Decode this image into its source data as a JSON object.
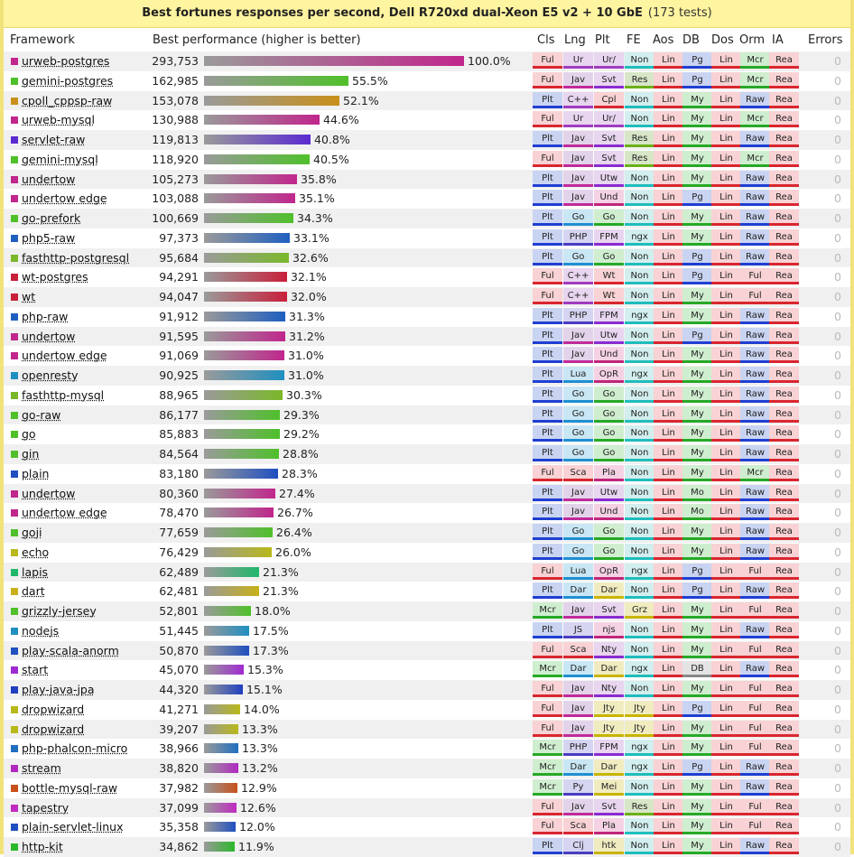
{
  "title": "Best fortunes responses per second, Dell R720xd dual-Xeon E5 v2 + 10 GbE",
  "tests_note": "(173 tests)",
  "headers": {
    "framework": "Framework",
    "performance": "Best performance (higher is better)",
    "attrs": [
      "Cls",
      "Lng",
      "Plt",
      "FE",
      "Aos",
      "DB",
      "Dos",
      "Orm",
      "IA"
    ],
    "errors": "Errors"
  },
  "attr_colors": {
    "Cls": {
      "Ful": [
        "#f8d2d4",
        "#d9262f"
      ],
      "Plt": [
        "#c9d4f2",
        "#1f3fd1"
      ],
      "Mcr": [
        "#cfeecf",
        "#26a926"
      ]
    },
    "Lng": {
      "Ur": [
        "#e8d5ef",
        "#a03cc0"
      ],
      "C++": [
        "#e8d5ef",
        "#a03cc0"
      ],
      "Jav": [
        "#e3d3ea",
        "#c02a9a"
      ],
      "Go": [
        "#c9e6f4",
        "#1f8fd1"
      ],
      "PHP": [
        "#d5d5f2",
        "#4a3cc0"
      ],
      "Lua": [
        "#c9e6f4",
        "#1f8fd1"
      ],
      "Sca": [
        "#f8d2d4",
        "#d9262f"
      ],
      "Dar": [
        "#c9e6f4",
        "#1f8fd1"
      ],
      "JS": [
        "#d5d5f2",
        "#4a3cc0"
      ],
      "Py": [
        "#d5d5f2",
        "#4a3cc0"
      ],
      "Clj": [
        "#d5d5f2",
        "#4a3cc0"
      ]
    },
    "Plt": {
      "Ur/": [
        "#e8d5ef",
        "#a03cc0"
      ],
      "Svt": [
        "#e8d5ef",
        "#8a2bd1"
      ],
      "Cpl": [
        "#f8d2d4",
        "#d9262f"
      ],
      "Utw": [
        "#e8d5ef",
        "#8a2bd1"
      ],
      "Und": [
        "#f4d2e4",
        "#c0267a"
      ],
      "Go": [
        "#cfeecf",
        "#26a926"
      ],
      "FPM": [
        "#e8d5ef",
        "#8a2bd1"
      ],
      "Wt": [
        "#f8d2d4",
        "#d9262f"
      ],
      "OpR": [
        "#f4d2e4",
        "#c0267a"
      ],
      "Pla": [
        "#f4d2e4",
        "#c0267a"
      ],
      "Dar": [
        "#f0ecc0",
        "#c8b400"
      ],
      "njs": [
        "#f4d2e4",
        "#c0267a"
      ],
      "Nty": [
        "#e8d5ef",
        "#8a2bd1"
      ],
      "Jty": [
        "#f0ecc0",
        "#c8b400"
      ],
      "Mei": [
        "#f0ecc0",
        "#c8b400"
      ],
      "htk": [
        "#f0ecc0",
        "#c8b400"
      ]
    },
    "FE": {
      "Non": [
        "#d2eeee",
        "#1fbcbc"
      ],
      "Res": [
        "#d8e6c8",
        "#6ab018"
      ],
      "ngx": [
        "#d2eeee",
        "#1fbcbc"
      ],
      "Grz": [
        "#f0ecc0",
        "#c8b400"
      ],
      "Jty": [
        "#f0ecc0",
        "#c8b400"
      ]
    },
    "Aos": {
      "Lin": [
        "#f8d2d4",
        "#d9262f"
      ]
    },
    "DB": {
      "Pg": [
        "#c9d4f2",
        "#1f3fd1"
      ],
      "My": [
        "#cfeecf",
        "#26a926"
      ],
      "Mo": [
        "#cfeecf",
        "#26a926"
      ]
    },
    "Dos": {
      "Lin": [
        "#f8d2d4",
        "#d9262f"
      ]
    },
    "Orm": {
      "Mcr": [
        "#cfeecf",
        "#26a926"
      ],
      "Raw": [
        "#c9d4f2",
        "#1f3fd1"
      ],
      "Ful": [
        "#f8d2d4",
        "#d9262f"
      ]
    },
    "IA": {
      "Rea": [
        "#f8d2d4",
        "#d9262f"
      ]
    }
  },
  "rows": [
    {
      "name": "urweb-postgres",
      "value": "293,753",
      "pct": "100.0%",
      "color": "#c0268c",
      "attrs": [
        "Ful",
        "Ur",
        "Ur/",
        "Non",
        "Lin",
        "Pg",
        "Lin",
        "Mcr",
        "Rea"
      ],
      "errors": "0"
    },
    {
      "name": "gemini-postgres",
      "value": "162,985",
      "pct": "55.5%",
      "color": "#4fc02a",
      "attrs": [
        "Ful",
        "Jav",
        "Svt",
        "Res",
        "Lin",
        "Pg",
        "Lin",
        "Mcr",
        "Rea"
      ],
      "errors": "0"
    },
    {
      "name": "cpoll_cppsp-raw",
      "value": "153,078",
      "pct": "52.1%",
      "color": "#c8901a",
      "attrs": [
        "Plt",
        "C++",
        "Cpl",
        "Non",
        "Lin",
        "My",
        "Lin",
        "Raw",
        "Rea"
      ],
      "errors": "0"
    },
    {
      "name": "urweb-mysql",
      "value": "130,988",
      "pct": "44.6%",
      "color": "#c0268c",
      "attrs": [
        "Ful",
        "Ur",
        "Ur/",
        "Non",
        "Lin",
        "My",
        "Lin",
        "Mcr",
        "Rea"
      ],
      "errors": "0"
    },
    {
      "name": "servlet-raw",
      "value": "119,813",
      "pct": "40.8%",
      "color": "#5a2ad1",
      "attrs": [
        "Plt",
        "Jav",
        "Svt",
        "Res",
        "Lin",
        "My",
        "Lin",
        "Raw",
        "Rea"
      ],
      "errors": "0"
    },
    {
      "name": "gemini-mysql",
      "value": "118,920",
      "pct": "40.5%",
      "color": "#4fc02a",
      "attrs": [
        "Ful",
        "Jav",
        "Svt",
        "Res",
        "Lin",
        "My",
        "Lin",
        "Mcr",
        "Rea"
      ],
      "errors": "0"
    },
    {
      "name": "undertow",
      "value": "105,273",
      "pct": "35.8%",
      "color": "#c0268c",
      "attrs": [
        "Plt",
        "Jav",
        "Utw",
        "Non",
        "Lin",
        "My",
        "Lin",
        "Raw",
        "Rea"
      ],
      "errors": "0"
    },
    {
      "name": "undertow edge",
      "value": "103,088",
      "pct": "35.1%",
      "color": "#c0268c",
      "attrs": [
        "Plt",
        "Jav",
        "Und",
        "Non",
        "Lin",
        "Pg",
        "Lin",
        "Raw",
        "Rea"
      ],
      "errors": "0"
    },
    {
      "name": "go-prefork",
      "value": "100,669",
      "pct": "34.3%",
      "color": "#4fc02a",
      "attrs": [
        "Plt",
        "Go",
        "Go",
        "Non",
        "Lin",
        "My",
        "Lin",
        "Raw",
        "Rea"
      ],
      "errors": "0"
    },
    {
      "name": "php5-raw",
      "value": "97,373",
      "pct": "33.1%",
      "color": "#1f5fc0",
      "attrs": [
        "Plt",
        "PHP",
        "FPM",
        "ngx",
        "Lin",
        "My",
        "Lin",
        "Raw",
        "Rea"
      ],
      "errors": "0"
    },
    {
      "name": "fasthttp-postgresql",
      "value": "95,684",
      "pct": "32.6%",
      "color": "#7ab82a",
      "attrs": [
        "Plt",
        "Go",
        "Go",
        "Non",
        "Lin",
        "Pg",
        "Lin",
        "Raw",
        "Rea"
      ],
      "errors": "0"
    },
    {
      "name": "wt-postgres",
      "value": "94,291",
      "pct": "32.1%",
      "color": "#c8203a",
      "attrs": [
        "Ful",
        "C++",
        "Wt",
        "Non",
        "Lin",
        "Pg",
        "Lin",
        "Ful",
        "Rea"
      ],
      "errors": "0"
    },
    {
      "name": "wt",
      "value": "94,047",
      "pct": "32.0%",
      "color": "#c8203a",
      "attrs": [
        "Ful",
        "C++",
        "Wt",
        "Non",
        "Lin",
        "My",
        "Lin",
        "Ful",
        "Rea"
      ],
      "errors": "0"
    },
    {
      "name": "php-raw",
      "value": "91,912",
      "pct": "31.3%",
      "color": "#1f5fc0",
      "attrs": [
        "Plt",
        "PHP",
        "FPM",
        "ngx",
        "Lin",
        "My",
        "Lin",
        "Raw",
        "Rea"
      ],
      "errors": "0"
    },
    {
      "name": "undertow",
      "value": "91,595",
      "pct": "31.2%",
      "color": "#c0268c",
      "attrs": [
        "Plt",
        "Jav",
        "Utw",
        "Non",
        "Lin",
        "Pg",
        "Lin",
        "Raw",
        "Rea"
      ],
      "errors": "0"
    },
    {
      "name": "undertow edge",
      "value": "91,069",
      "pct": "31.0%",
      "color": "#c0268c",
      "attrs": [
        "Plt",
        "Jav",
        "Und",
        "Non",
        "Lin",
        "My",
        "Lin",
        "Raw",
        "Rea"
      ],
      "errors": "0"
    },
    {
      "name": "openresty",
      "value": "90,925",
      "pct": "31.0%",
      "color": "#1f8fc0",
      "attrs": [
        "Plt",
        "Lua",
        "OpR",
        "ngx",
        "Lin",
        "My",
        "Lin",
        "Raw",
        "Rea"
      ],
      "errors": "0"
    },
    {
      "name": "fasthttp-mysql",
      "value": "88,965",
      "pct": "30.3%",
      "color": "#7ab82a",
      "attrs": [
        "Plt",
        "Go",
        "Go",
        "Non",
        "Lin",
        "My",
        "Lin",
        "Raw",
        "Rea"
      ],
      "errors": "0"
    },
    {
      "name": "go-raw",
      "value": "86,177",
      "pct": "29.3%",
      "color": "#4fc02a",
      "attrs": [
        "Plt",
        "Go",
        "Go",
        "Non",
        "Lin",
        "My",
        "Lin",
        "Raw",
        "Rea"
      ],
      "errors": "0"
    },
    {
      "name": "go",
      "value": "85,883",
      "pct": "29.2%",
      "color": "#4fc02a",
      "attrs": [
        "Plt",
        "Go",
        "Go",
        "Non",
        "Lin",
        "My",
        "Lin",
        "Raw",
        "Rea"
      ],
      "errors": "0"
    },
    {
      "name": "gin",
      "value": "84,564",
      "pct": "28.8%",
      "color": "#4fc02a",
      "attrs": [
        "Plt",
        "Go",
        "Go",
        "Non",
        "Lin",
        "My",
        "Lin",
        "Raw",
        "Rea"
      ],
      "errors": "0"
    },
    {
      "name": "plain",
      "value": "83,180",
      "pct": "28.3%",
      "color": "#1f4fc0",
      "attrs": [
        "Ful",
        "Sca",
        "Pla",
        "Non",
        "Lin",
        "My",
        "Lin",
        "Mcr",
        "Rea"
      ],
      "errors": "0"
    },
    {
      "name": "undertow",
      "value": "80,360",
      "pct": "27.4%",
      "color": "#c0268c",
      "attrs": [
        "Plt",
        "Jav",
        "Utw",
        "Non",
        "Lin",
        "Mo",
        "Lin",
        "Raw",
        "Rea"
      ],
      "errors": "0"
    },
    {
      "name": "undertow edge",
      "value": "78,470",
      "pct": "26.7%",
      "color": "#c0268c",
      "attrs": [
        "Plt",
        "Jav",
        "Und",
        "Non",
        "Lin",
        "Mo",
        "Lin",
        "Raw",
        "Rea"
      ],
      "errors": "0"
    },
    {
      "name": "goji",
      "value": "77,659",
      "pct": "26.4%",
      "color": "#4fc02a",
      "attrs": [
        "Plt",
        "Go",
        "Go",
        "Non",
        "Lin",
        "My",
        "Lin",
        "Raw",
        "Rea"
      ],
      "errors": "0"
    },
    {
      "name": "echo",
      "value": "76,429",
      "pct": "26.0%",
      "color": "#b8b81a",
      "attrs": [
        "Plt",
        "Go",
        "Go",
        "Non",
        "Lin",
        "My",
        "Lin",
        "Raw",
        "Rea"
      ],
      "errors": "0"
    },
    {
      "name": "lapis",
      "value": "62,489",
      "pct": "21.3%",
      "color": "#1fb86a",
      "attrs": [
        "Ful",
        "Lua",
        "OpR",
        "ngx",
        "Lin",
        "Pg",
        "Lin",
        "Ful",
        "Rea"
      ],
      "errors": "0"
    },
    {
      "name": "dart",
      "value": "62,481",
      "pct": "21.3%",
      "color": "#c8b01a",
      "attrs": [
        "Plt",
        "Dar",
        "Dar",
        "Non",
        "Lin",
        "Pg",
        "Lin",
        "Raw",
        "Rea"
      ],
      "errors": "0"
    },
    {
      "name": "grizzly-jersey",
      "value": "52,801",
      "pct": "18.0%",
      "color": "#4fc02a",
      "attrs": [
        "Mcr",
        "Jav",
        "Svt",
        "Grz",
        "Lin",
        "My",
        "Lin",
        "Ful",
        "Rea"
      ],
      "errors": "0"
    },
    {
      "name": "nodejs",
      "value": "51,445",
      "pct": "17.5%",
      "color": "#1f8fc0",
      "attrs": [
        "Plt",
        "JS",
        "njs",
        "Non",
        "Lin",
        "My",
        "Lin",
        "Raw",
        "Rea"
      ],
      "errors": "0"
    },
    {
      "name": "play-scala-anorm",
      "value": "50,870",
      "pct": "17.3%",
      "color": "#1f4fc0",
      "attrs": [
        "Ful",
        "Sca",
        "Nty",
        "Non",
        "Lin",
        "My",
        "Lin",
        "Ful",
        "Rea"
      ],
      "errors": "0"
    },
    {
      "name": "start",
      "value": "45,070",
      "pct": "15.3%",
      "color": "#a02ad1",
      "attrs": [
        "Mcr",
        "Dar",
        "Dar",
        "ngx",
        "Lin",
        "DB",
        "Lin",
        "Raw",
        "Rea"
      ],
      "errors": "0"
    },
    {
      "name": "play-java-jpa",
      "value": "44,320",
      "pct": "15.1%",
      "color": "#1f3fc0",
      "attrs": [
        "Ful",
        "Jav",
        "Nty",
        "Non",
        "Lin",
        "My",
        "Lin",
        "Ful",
        "Rea"
      ],
      "errors": "0"
    },
    {
      "name": "dropwizard",
      "value": "41,271",
      "pct": "14.0%",
      "color": "#b8b81a",
      "attrs": [
        "Ful",
        "Jav",
        "Jty",
        "Jty",
        "Lin",
        "Pg",
        "Lin",
        "Ful",
        "Rea"
      ],
      "errors": "0"
    },
    {
      "name": "dropwizard",
      "value": "39,207",
      "pct": "13.3%",
      "color": "#b8b81a",
      "attrs": [
        "Ful",
        "Jav",
        "Jty",
        "Jty",
        "Lin",
        "My",
        "Lin",
        "Ful",
        "Rea"
      ],
      "errors": "0"
    },
    {
      "name": "php-phalcon-micro",
      "value": "38,966",
      "pct": "13.3%",
      "color": "#1f6fc0",
      "attrs": [
        "Mcr",
        "PHP",
        "FPM",
        "ngx",
        "Lin",
        "My",
        "Lin",
        "Ful",
        "Rea"
      ],
      "errors": "0"
    },
    {
      "name": "stream",
      "value": "38,820",
      "pct": "13.2%",
      "color": "#b02ac0",
      "attrs": [
        "Mcr",
        "Dar",
        "Dar",
        "ngx",
        "Lin",
        "Pg",
        "Lin",
        "Raw",
        "Rea"
      ],
      "errors": "0"
    },
    {
      "name": "bottle-mysql-raw",
      "value": "37,982",
      "pct": "12.9%",
      "color": "#c8501a",
      "attrs": [
        "Mcr",
        "Py",
        "Mei",
        "Non",
        "Lin",
        "My",
        "Lin",
        "Raw",
        "Rea"
      ],
      "errors": "0"
    },
    {
      "name": "tapestry",
      "value": "37,099",
      "pct": "12.6%",
      "color": "#c02ac0",
      "attrs": [
        "Ful",
        "Jav",
        "Svt",
        "Res",
        "Lin",
        "My",
        "Lin",
        "Ful",
        "Rea"
      ],
      "errors": "0"
    },
    {
      "name": "plain-servlet-linux",
      "value": "35,358",
      "pct": "12.0%",
      "color": "#1f4fc0",
      "attrs": [
        "Ful",
        "Sca",
        "Pla",
        "Non",
        "Lin",
        "My",
        "Lin",
        "Ful",
        "Rea"
      ],
      "errors": "0"
    },
    {
      "name": "http-kit",
      "value": "34,862",
      "pct": "11.9%",
      "color": "#2ab82a",
      "attrs": [
        "Plt",
        "Clj",
        "htk",
        "Non",
        "Lin",
        "My",
        "Lin",
        "Raw",
        "Rea"
      ],
      "errors": "0"
    }
  ],
  "chart_data": {
    "type": "bar",
    "title": "Best fortunes responses per second, Dell R720xd dual-Xeon E5 v2 + 10 GbE",
    "xlabel": "Best performance (higher is better)",
    "ylabel": "Framework",
    "categories": [
      "urweb-postgres",
      "gemini-postgres",
      "cpoll_cppsp-raw",
      "urweb-mysql",
      "servlet-raw",
      "gemini-mysql",
      "undertow",
      "undertow edge",
      "go-prefork",
      "php5-raw",
      "fasthttp-postgresql",
      "wt-postgres",
      "wt",
      "php-raw",
      "undertow",
      "undertow edge",
      "openresty",
      "fasthttp-mysql",
      "go-raw",
      "go",
      "gin",
      "plain",
      "undertow",
      "undertow edge",
      "goji",
      "echo",
      "lapis",
      "dart",
      "grizzly-jersey",
      "nodejs",
      "play-scala-anorm",
      "start",
      "play-java-jpa",
      "dropwizard",
      "dropwizard",
      "php-phalcon-micro",
      "stream",
      "bottle-mysql-raw",
      "tapestry",
      "plain-servlet-linux",
      "http-kit"
    ],
    "values": [
      293753,
      162985,
      153078,
      130988,
      119813,
      118920,
      105273,
      103088,
      100669,
      97373,
      95684,
      94291,
      94047,
      91912,
      91595,
      91069,
      90925,
      88965,
      86177,
      85883,
      84564,
      83180,
      80360,
      78470,
      77659,
      76429,
      62489,
      62481,
      52801,
      51445,
      50870,
      45070,
      44320,
      41271,
      39207,
      38966,
      38820,
      37982,
      37099,
      35358,
      34862
    ],
    "percent": [
      100.0,
      55.5,
      52.1,
      44.6,
      40.8,
      40.5,
      35.8,
      35.1,
      34.3,
      33.1,
      32.6,
      32.1,
      32.0,
      31.3,
      31.2,
      31.0,
      31.0,
      30.3,
      29.3,
      29.2,
      28.8,
      28.3,
      27.4,
      26.7,
      26.4,
      26.0,
      21.3,
      21.3,
      18.0,
      17.5,
      17.3,
      15.3,
      15.1,
      14.0,
      13.3,
      13.3,
      13.2,
      12.9,
      12.6,
      12.0,
      11.9
    ],
    "xlim": [
      0,
      293753
    ],
    "grid": false,
    "orientation": "horizontal"
  }
}
